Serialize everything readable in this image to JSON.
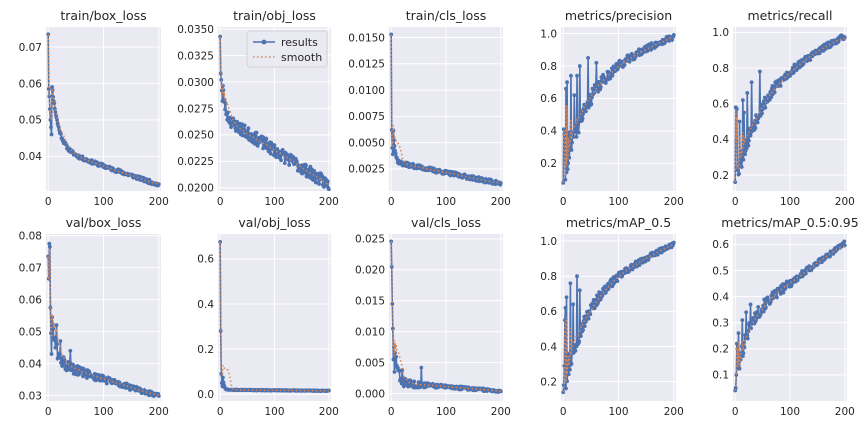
{
  "chart_data": [
    {
      "type": "line",
      "title": "train/box_loss",
      "xlim": [
        -4,
        204
      ],
      "ylim": [
        0.0305,
        0.0755
      ],
      "xticks": [
        0,
        100,
        200
      ],
      "yticks": [
        0.04,
        0.05,
        0.06,
        0.07
      ],
      "ytick_labels": [
        "0.04",
        "0.05",
        "0.06",
        "0.07"
      ],
      "curve": {
        "n": 201,
        "start": 0.0735,
        "end": 0.0322,
        "knee": 0.0425,
        "tau": 12,
        "noise": 0.0005,
        "seed": 11,
        "spikes": [
          [
            1,
            0.0585
          ],
          [
            2,
            0.0565
          ],
          [
            3,
            0.053
          ],
          [
            4,
            0.05
          ],
          [
            5,
            0.048
          ],
          [
            6,
            0.046
          ]
        ]
      }
    },
    {
      "type": "line",
      "title": "train/obj_loss",
      "xlim": [
        -4,
        204
      ],
      "ylim": [
        0.0197,
        0.0352
      ],
      "xticks": [
        0,
        100,
        200
      ],
      "yticks": [
        0.02,
        0.0225,
        0.025,
        0.0275,
        0.03,
        0.0325,
        0.035
      ],
      "ytick_labels": [
        "0.0200",
        "0.0225",
        "0.0250",
        "0.0275",
        "0.0300",
        "0.0325",
        "0.0350"
      ],
      "legend": {
        "position": "upper right",
        "entries": [
          "results",
          "smooth"
        ]
      },
      "curve": {
        "n": 201,
        "start": 0.0343,
        "end": 0.0203,
        "knee": 0.0268,
        "tau": 5,
        "noise": 0.0006,
        "seed": 23,
        "spikes": [
          [
            1,
            0.0308
          ],
          [
            2,
            0.0302
          ],
          [
            3,
            0.0292
          ],
          [
            4,
            0.0282
          ]
        ]
      }
    },
    {
      "type": "line",
      "title": "train/cls_loss",
      "xlim": [
        -4,
        204
      ],
      "ylim": [
        0.0004,
        0.016
      ],
      "xticks": [
        0,
        100,
        200
      ],
      "yticks": [
        0.0025,
        0.005,
        0.0075,
        0.01,
        0.0125,
        0.015
      ],
      "ytick_labels": [
        "0.0025",
        "0.0050",
        "0.0075",
        "0.0100",
        "0.0125",
        "0.0150"
      ],
      "curve": {
        "n": 201,
        "start": 0.0153,
        "end": 0.0011,
        "knee": 0.0032,
        "tau": 3,
        "noise": 0.0002,
        "seed": 37,
        "spikes": [
          [
            1,
            0.0062
          ],
          [
            2,
            0.0045
          ],
          [
            3,
            0.0039
          ]
        ]
      }
    },
    {
      "type": "line",
      "title": "metrics/precision",
      "xlim": [
        -4,
        204
      ],
      "ylim": [
        0.03,
        1.04
      ],
      "xticks": [
        0,
        100,
        200
      ],
      "yticks": [
        0.2,
        0.4,
        0.6,
        0.8,
        1.0
      ],
      "ytick_labels": [
        "0.2",
        "0.4",
        "0.6",
        "0.8",
        "1.0"
      ],
      "curve": {
        "n": 201,
        "start": 0.08,
        "end": 0.985,
        "knee": 0.72,
        "tau": 40,
        "noise": 0.04,
        "seed": 41,
        "noise_decay": 70,
        "spikes": [
          [
            1,
            0.41
          ],
          [
            2,
            0.38
          ],
          [
            3,
            0.36
          ],
          [
            5,
            0.66
          ],
          [
            7,
            0.7
          ],
          [
            10,
            0.39
          ],
          [
            14,
            0.74
          ],
          [
            20,
            0.62
          ],
          [
            25,
            0.74
          ],
          [
            30,
            0.8
          ],
          [
            45,
            0.85
          ],
          [
            60,
            0.82
          ]
        ]
      }
    },
    {
      "type": "line",
      "title": "metrics/recall",
      "xlim": [
        -4,
        204
      ],
      "ylim": [
        0.11,
        1.03
      ],
      "xticks": [
        0,
        100,
        200
      ],
      "yticks": [
        0.2,
        0.4,
        0.6,
        0.8,
        1.0
      ],
      "ytick_labels": [
        "0.2",
        "0.4",
        "0.6",
        "0.8",
        "1.0"
      ],
      "curve": {
        "n": 201,
        "start": 0.16,
        "end": 0.985,
        "knee": 0.68,
        "tau": 45,
        "noise": 0.035,
        "seed": 53,
        "noise_decay": 70,
        "spikes": [
          [
            1,
            0.58
          ],
          [
            2,
            0.39
          ],
          [
            3,
            0.57
          ],
          [
            8,
            0.5
          ],
          [
            14,
            0.62
          ],
          [
            16,
            0.55
          ],
          [
            22,
            0.66
          ],
          [
            30,
            0.72
          ],
          [
            45,
            0.78
          ]
        ]
      }
    },
    {
      "type": "line",
      "title": "val/box_loss",
      "xlim": [
        -4,
        204
      ],
      "ylim": [
        0.0283,
        0.0805
      ],
      "xticks": [
        0,
        100,
        200
      ],
      "yticks": [
        0.03,
        0.04,
        0.05,
        0.06,
        0.07,
        0.08
      ],
      "ytick_labels": [
        "0.03",
        "0.04",
        "0.05",
        "0.06",
        "0.07",
        "0.08"
      ],
      "curve": {
        "n": 201,
        "start": 0.0735,
        "end": 0.0298,
        "knee": 0.0405,
        "tau": 8,
        "noise": 0.0013,
        "seed": 61,
        "noise_decay": 90,
        "spikes": [
          [
            1,
            0.0665
          ],
          [
            2,
            0.0775
          ],
          [
            3,
            0.0765
          ],
          [
            4,
            0.0575
          ],
          [
            5,
            0.0495
          ],
          [
            6,
            0.043
          ],
          [
            15,
            0.052
          ],
          [
            22,
            0.047
          ],
          [
            28,
            0.042
          ],
          [
            40,
            0.044
          ],
          [
            55,
            0.039
          ]
        ]
      }
    },
    {
      "type": "line",
      "title": "val/obj_loss",
      "xlim": [
        -4,
        204
      ],
      "ylim": [
        -0.03,
        0.71
      ],
      "xticks": [
        0,
        100,
        200
      ],
      "yticks": [
        0.0,
        0.2,
        0.4,
        0.6
      ],
      "ytick_labels": [
        "0.0",
        "0.2",
        "0.4",
        "0.6"
      ],
      "curve": {
        "n": 201,
        "start": 0.675,
        "end": 0.015,
        "knee": 0.02,
        "tau": 2,
        "noise": 0.0015,
        "seed": 71,
        "spikes": [
          [
            1,
            0.28
          ],
          [
            2,
            0.09
          ],
          [
            3,
            0.05
          ],
          [
            4,
            0.035
          ]
        ]
      }
    },
    {
      "type": "line",
      "title": "val/cls_loss",
      "xlim": [
        -4,
        204
      ],
      "ylim": [
        -0.0012,
        0.0258
      ],
      "xticks": [
        0,
        100,
        200
      ],
      "yticks": [
        0.0,
        0.005,
        0.01,
        0.015,
        0.02,
        0.025
      ],
      "ytick_labels": [
        "0.000",
        "0.005",
        "0.010",
        "0.015",
        "0.020",
        "0.025"
      ],
      "curve": {
        "n": 201,
        "start": 0.0246,
        "end": 0.0004,
        "knee": 0.0018,
        "tau": 5,
        "noise": 0.0006,
        "seed": 83,
        "noise_decay": 40,
        "spikes": [
          [
            1,
            0.0205
          ],
          [
            2,
            0.0145
          ],
          [
            3,
            0.0105
          ],
          [
            4,
            0.0055
          ],
          [
            5,
            0.0075
          ],
          [
            6,
            0.0035
          ],
          [
            8,
            0.0045
          ],
          [
            12,
            0.0042
          ],
          [
            20,
            0.0038
          ],
          [
            55,
            0.0042
          ]
        ]
      }
    },
    {
      "type": "line",
      "title": "metrics/mAP_0.5",
      "xlim": [
        -4,
        204
      ],
      "ylim": [
        0.09,
        1.04
      ],
      "xticks": [
        0,
        100,
        200
      ],
      "yticks": [
        0.2,
        0.4,
        0.6,
        0.8,
        1.0
      ],
      "ytick_labels": [
        "0.2",
        "0.4",
        "0.6",
        "0.8",
        "1.0"
      ],
      "curve": {
        "n": 201,
        "start": 0.14,
        "end": 0.985,
        "knee": 0.7,
        "tau": 40,
        "noise": 0.03,
        "seed": 97,
        "noise_decay": 70,
        "spikes": [
          [
            1,
            0.18
          ],
          [
            2,
            0.29
          ],
          [
            3,
            0.55
          ],
          [
            4,
            0.62
          ],
          [
            6,
            0.68
          ],
          [
            9,
            0.36
          ],
          [
            13,
            0.76
          ],
          [
            18,
            0.64
          ],
          [
            25,
            0.8
          ],
          [
            30,
            0.72
          ]
        ]
      }
    },
    {
      "type": "line",
      "title": "metrics/mAP_0.5:0.95",
      "xlim": [
        -4,
        204
      ],
      "ylim": [
        0.0,
        0.64
      ],
      "xticks": [
        0,
        100,
        200
      ],
      "yticks": [
        0.1,
        0.2,
        0.3,
        0.4,
        0.5,
        0.6
      ],
      "ytick_labels": [
        "0.1",
        "0.2",
        "0.3",
        "0.4",
        "0.5",
        "0.6"
      ],
      "curve": {
        "n": 201,
        "start": 0.04,
        "end": 0.605,
        "knee": 0.3,
        "tau": 18,
        "noise": 0.018,
        "seed": 101,
        "noise_decay": 90,
        "linear": 0.3,
        "spikes": [
          [
            1,
            0.05
          ],
          [
            2,
            0.1
          ],
          [
            3,
            0.22
          ],
          [
            4,
            0.2
          ],
          [
            6,
            0.26
          ],
          [
            9,
            0.17
          ],
          [
            13,
            0.31
          ],
          [
            20,
            0.34
          ],
          [
            28,
            0.37
          ]
        ]
      }
    }
  ],
  "colors": {
    "results": "#4c72b0",
    "smooth": "#dd8452",
    "axes_bg": "#eaeaf2",
    "grid": "#ffffff"
  }
}
